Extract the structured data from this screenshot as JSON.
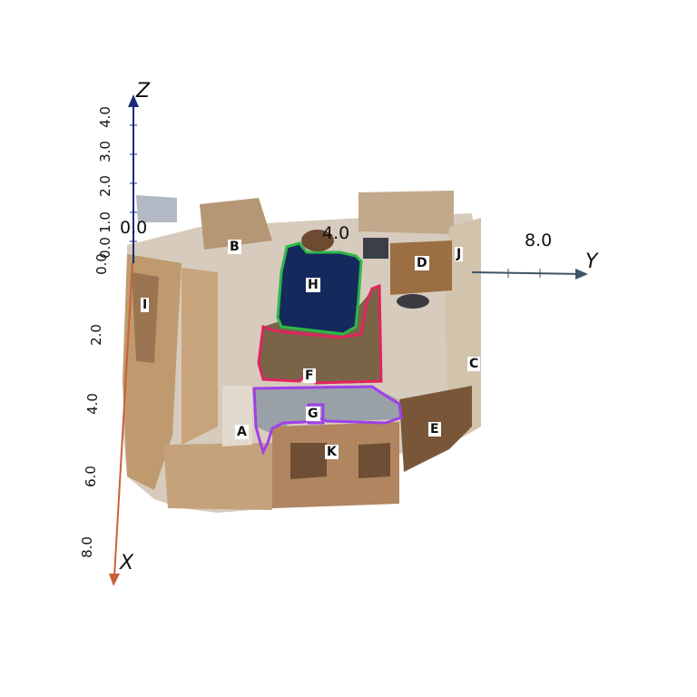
{
  "axes": {
    "x": {
      "name": "X",
      "color": "#c8603a",
      "ticks": [
        "2.0",
        "4.0",
        "6.0",
        "8.0"
      ]
    },
    "y": {
      "name": "Y",
      "color": "#3d5566",
      "ticks": [
        "0.0",
        "4.0",
        "8.0"
      ]
    },
    "z": {
      "name": "Z",
      "color": "#1c2a78",
      "ticks": [
        "0.0",
        "1.0",
        "2.0",
        "3.0",
        "4.0"
      ]
    },
    "origin_labels": [
      "0.0",
      "0.0",
      "0.0"
    ]
  },
  "objects": [
    {
      "id": "A"
    },
    {
      "id": "B"
    },
    {
      "id": "C"
    },
    {
      "id": "D"
    },
    {
      "id": "E"
    },
    {
      "id": "F",
      "outline": "#e0245e"
    },
    {
      "id": "G",
      "outline": "#a040e8"
    },
    {
      "id": "H",
      "outline": "#2fb84a"
    },
    {
      "id": "I"
    },
    {
      "id": "J"
    },
    {
      "id": "K"
    }
  ]
}
